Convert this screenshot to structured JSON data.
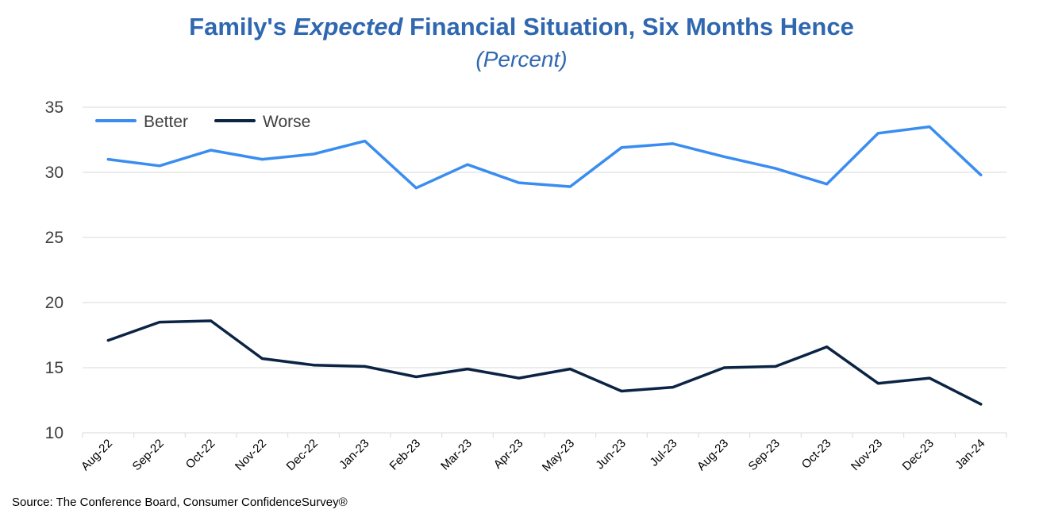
{
  "title": {
    "part1": "Family's ",
    "part2": "Expected",
    "part3": " Financial Situation, Six Months Hence"
  },
  "subtitle": "(Percent)",
  "source": "Source: The Conference Board, Consumer ConfidenceSurvey®",
  "colors": {
    "better": "#3a8df0",
    "worse": "#0b2344",
    "grid": "#d9d9d9",
    "title": "#2f67b0"
  },
  "chart_data": {
    "type": "line",
    "categories": [
      "Aug-22",
      "Sep-22",
      "Oct-22",
      "Nov-22",
      "Dec-22",
      "Jan-23",
      "Feb-23",
      "Mar-23",
      "Apr-23",
      "May-23",
      "Jun-23",
      "Jul-23",
      "Aug-23",
      "Sep-23",
      "Oct-23",
      "Nov-23",
      "Dec-23",
      "Jan-24"
    ],
    "series": [
      {
        "name": "Better",
        "color": "#3a8df0",
        "values": [
          31.0,
          30.5,
          31.7,
          31.0,
          31.4,
          32.4,
          28.8,
          30.6,
          29.2,
          28.9,
          31.9,
          32.2,
          31.2,
          30.3,
          29.1,
          33.0,
          33.5,
          29.8
        ]
      },
      {
        "name": "Worse",
        "color": "#0b2344",
        "values": [
          17.1,
          18.5,
          18.6,
          15.7,
          15.2,
          15.1,
          14.3,
          14.9,
          14.2,
          14.9,
          13.2,
          13.5,
          15.0,
          15.1,
          16.6,
          13.8,
          14.2,
          12.2
        ]
      }
    ],
    "yticks": [
      10,
      15,
      20,
      25,
      30,
      35
    ],
    "ylim": [
      10,
      35
    ],
    "grid": true,
    "legend_position": "top-left"
  }
}
